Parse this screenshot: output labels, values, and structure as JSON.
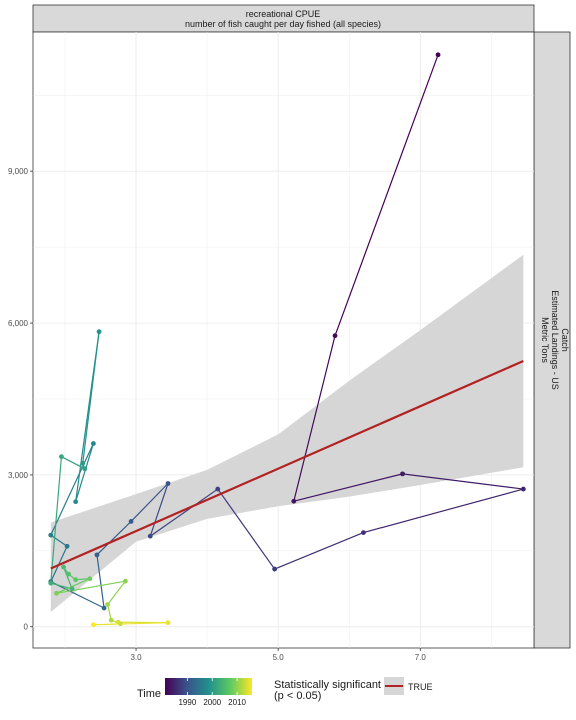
{
  "strip_top": {
    "line1": "recreational CPUE",
    "line2": "number of fish caught per day fished (all species)"
  },
  "strip_right": {
    "line1": "Catch",
    "line2": "Estimated Landings - US",
    "line3": "Metric Tons"
  },
  "legend": {
    "time_title": "Time",
    "time_ticks": [
      "1990",
      "2000",
      "2010"
    ],
    "sig_title_line1": "Statistically significant",
    "sig_title_line2": "(p < 0.05)",
    "sig_label": "TRUE"
  },
  "chart_data": {
    "type": "scatter",
    "connected": true,
    "xlim": [
      1.55,
      8.6
    ],
    "ylim": [
      -420,
      11750
    ],
    "x_ticks": [
      3.0,
      5.0,
      7.0
    ],
    "x_tick_labels": [
      "3.0",
      "5.0",
      "7.0"
    ],
    "y_ticks": [
      0,
      3000,
      6000,
      9000
    ],
    "y_tick_labels": [
      "0",
      "3,000",
      "6,000",
      "9,000"
    ],
    "grid": true,
    "color_scale": "viridis",
    "color_range_years": [
      1981,
      2016
    ],
    "points": [
      {
        "year": 1981,
        "x": 7.25,
        "y": 11300
      },
      {
        "year": 1982,
        "x": 5.8,
        "y": 5750
      },
      {
        "year": 1983,
        "x": 5.22,
        "y": 2480
      },
      {
        "year": 1984,
        "x": 6.75,
        "y": 3020
      },
      {
        "year": 1985,
        "x": 8.45,
        "y": 2720
      },
      {
        "year": 1986,
        "x": 6.2,
        "y": 1860
      },
      {
        "year": 1987,
        "x": 4.95,
        "y": 1140
      },
      {
        "year": 1988,
        "x": 4.15,
        "y": 2720
      },
      {
        "year": 1989,
        "x": 3.2,
        "y": 1790
      },
      {
        "year": 1990,
        "x": 3.45,
        "y": 2830
      },
      {
        "year": 1991,
        "x": 2.93,
        "y": 2080
      },
      {
        "year": 1992,
        "x": 2.45,
        "y": 1420
      },
      {
        "year": 1993,
        "x": 2.55,
        "y": 370
      },
      {
        "year": 1994,
        "x": 1.8,
        "y": 890
      },
      {
        "year": 1995,
        "x": 2.03,
        "y": 1590
      },
      {
        "year": 1996,
        "x": 1.8,
        "y": 1810
      },
      {
        "year": 1997,
        "x": 2.4,
        "y": 3620
      },
      {
        "year": 1998,
        "x": 2.15,
        "y": 2470
      },
      {
        "year": 1999,
        "x": 2.48,
        "y": 5830
      },
      {
        "year": 2000,
        "x": 2.25,
        "y": 3230
      },
      {
        "year": 2001,
        "x": 2.28,
        "y": 3120
      },
      {
        "year": 2002,
        "x": 1.95,
        "y": 3360
      },
      {
        "year": 2003,
        "x": 1.8,
        "y": 860
      },
      {
        "year": 2004,
        "x": 2.1,
        "y": 750
      },
      {
        "year": 2005,
        "x": 1.98,
        "y": 1180
      },
      {
        "year": 2006,
        "x": 2.05,
        "y": 1040
      },
      {
        "year": 2007,
        "x": 2.15,
        "y": 930
      },
      {
        "year": 2008,
        "x": 2.35,
        "y": 950
      },
      {
        "year": 2009,
        "x": 1.88,
        "y": 660
      },
      {
        "year": 2010,
        "x": 2.85,
        "y": 900
      },
      {
        "year": 2011,
        "x": 2.6,
        "y": 440
      },
      {
        "year": 2012,
        "x": 2.65,
        "y": 130
      },
      {
        "year": 2013,
        "x": 2.78,
        "y": 60
      },
      {
        "year": 2014,
        "x": 2.75,
        "y": 90
      },
      {
        "year": 2015,
        "x": 3.45,
        "y": 80
      },
      {
        "year": 2016,
        "x": 2.4,
        "y": 40
      }
    ],
    "trend": {
      "color": "#b22222",
      "line": [
        [
          1.8,
          1150
        ],
        [
          8.45,
          5250
        ]
      ],
      "ci_upper": [
        [
          1.8,
          2060
        ],
        [
          3.0,
          2620
        ],
        [
          4.0,
          3100
        ],
        [
          5.0,
          3800
        ],
        [
          6.0,
          4860
        ],
        [
          7.0,
          5860
        ],
        [
          8.45,
          7350
        ]
      ],
      "ci_lower": [
        [
          1.8,
          290
        ],
        [
          3.0,
          1680
        ],
        [
          4.0,
          2130
        ],
        [
          5.0,
          2380
        ],
        [
          6.0,
          2570
        ],
        [
          7.0,
          2800
        ],
        [
          8.45,
          3150
        ]
      ],
      "ci_color": "#d6d6d6"
    }
  }
}
